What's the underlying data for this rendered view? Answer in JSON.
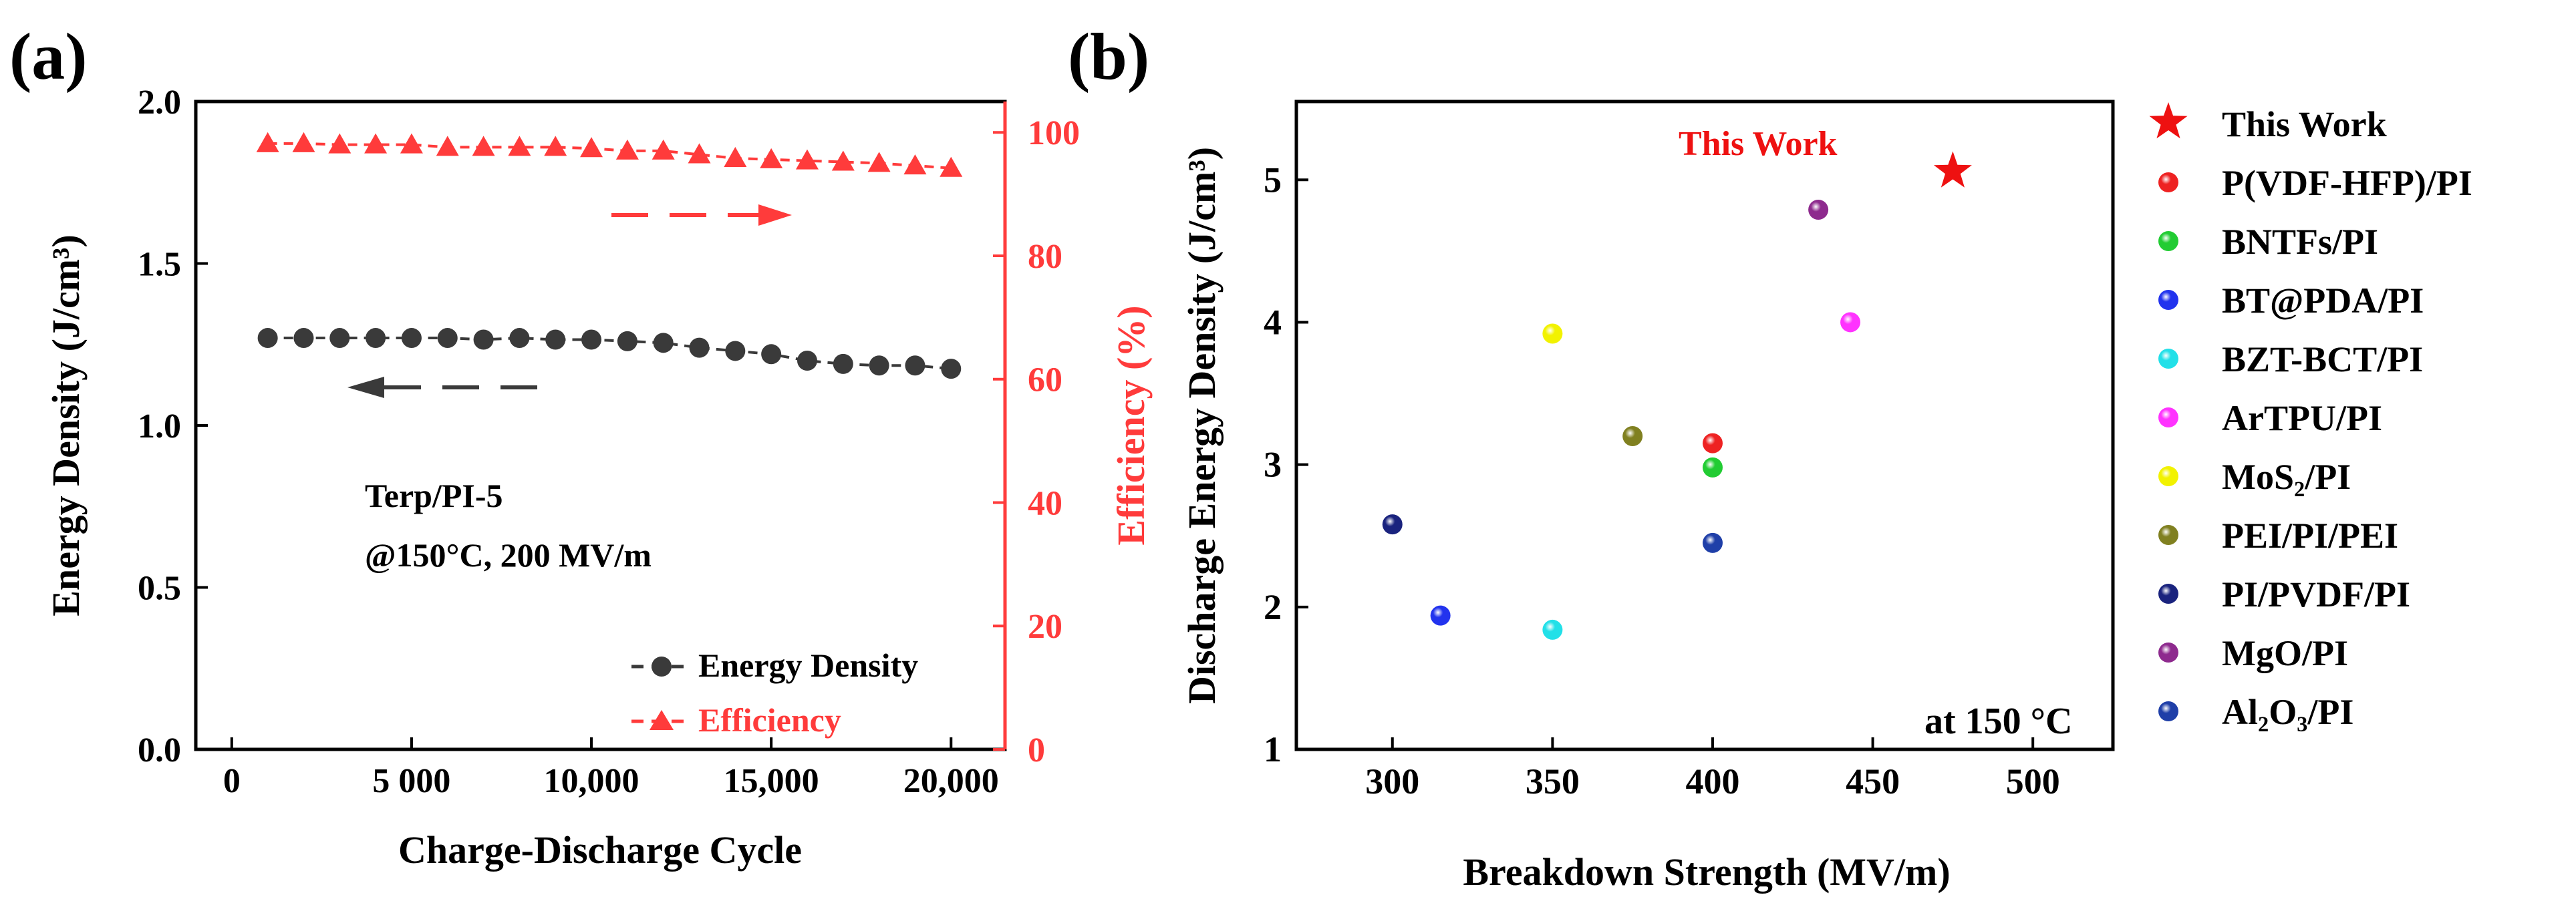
{
  "chart_data": [
    {
      "panel_label": "(a)",
      "type": "line",
      "title": "",
      "xlabel": "Charge-Discharge Cycle",
      "ylabel": "Energy Density (J/cm³)",
      "ylabel_right": "Efficiency (%)",
      "xlim": [
        -1000,
        21500
      ],
      "ylim": [
        0.0,
        2.0
      ],
      "ylim_right": [
        0,
        105
      ],
      "x_ticks": [
        0,
        5000,
        10000,
        15000,
        20000
      ],
      "x_tick_labels": [
        "0",
        "5 000",
        "10,000",
        "15,000",
        "20,000"
      ],
      "y_ticks": [
        0.0,
        0.5,
        1.0,
        1.5,
        2.0
      ],
      "y_tick_labels": [
        "0.0",
        "0.5",
        "1.0",
        "1.5",
        "2.0"
      ],
      "y_right_ticks": [
        0,
        20,
        40,
        60,
        80,
        100
      ],
      "y_right_tick_labels": [
        "0",
        "20",
        "40",
        "60",
        "80",
        "100"
      ],
      "x": [
        1000,
        2000,
        3000,
        4000,
        5000,
        6000,
        7000,
        8000,
        9000,
        10000,
        11000,
        12000,
        13000,
        14000,
        15000,
        16000,
        17000,
        18000,
        19000,
        20000
      ],
      "series": [
        {
          "name": "Energy Density",
          "axis": "left",
          "color": "#3a3a3a",
          "marker": "circle",
          "values": [
            1.27,
            1.27,
            1.27,
            1.27,
            1.27,
            1.27,
            1.265,
            1.27,
            1.265,
            1.265,
            1.26,
            1.255,
            1.24,
            1.23,
            1.22,
            1.2,
            1.19,
            1.185,
            1.185,
            1.175
          ]
        },
        {
          "name": "Efficiency",
          "axis": "right",
          "color": "#ff3b3b",
          "marker": "triangle",
          "values": [
            98.2,
            98.2,
            98.0,
            98.0,
            98.0,
            97.6,
            97.6,
            97.6,
            97.6,
            97.4,
            97.0,
            97.0,
            96.4,
            95.8,
            95.6,
            95.4,
            95.2,
            95.0,
            94.6,
            94.2
          ]
        }
      ],
      "annotations": [
        "Terp/PI-5",
        "@150°C, 200 MV/m"
      ]
    },
    {
      "panel_label": "(b)",
      "type": "scatter",
      "title": "",
      "xlabel": "Breakdown Strength (MV/m)",
      "ylabel": "Discharge Energy Density (J/cm³)",
      "xlim": [
        270,
        525
      ],
      "ylim": [
        1.0,
        5.55
      ],
      "x_ticks": [
        300,
        350,
        400,
        450,
        500
      ],
      "x_tick_labels": [
        "300",
        "350",
        "400",
        "450",
        "500"
      ],
      "y_ticks": [
        1,
        2,
        3,
        4,
        5
      ],
      "y_tick_labels": [
        "1",
        "2",
        "3",
        "4",
        "5"
      ],
      "points": [
        {
          "label": "This Work",
          "x": 475,
          "y": 5.06,
          "color": "#ee1111",
          "marker": "star"
        },
        {
          "label": "P(VDF-HFP)/PI",
          "x": 400,
          "y": 3.15,
          "color": "#ee2222",
          "marker": "circle"
        },
        {
          "label": "BNTFs/PI",
          "x": 400,
          "y": 2.98,
          "color": "#22cc33",
          "marker": "circle"
        },
        {
          "label": "BT@PDA/PI",
          "x": 315,
          "y": 1.94,
          "color": "#2233ee",
          "marker": "circle"
        },
        {
          "label": "BZT-BCT/PI",
          "x": 350,
          "y": 1.84,
          "color": "#22e0e8",
          "marker": "circle"
        },
        {
          "label": "ArTPU/PI",
          "x": 443,
          "y": 4.0,
          "color": "#ff33ff",
          "marker": "circle"
        },
        {
          "label": "MoS₂/PI",
          "x": 350,
          "y": 3.92,
          "color": "#f2f200",
          "marker": "circle"
        },
        {
          "label": "PEI/PI/PEI",
          "x": 375,
          "y": 3.2,
          "color": "#808020",
          "marker": "circle"
        },
        {
          "label": "PI/PVDF/PI",
          "x": 300,
          "y": 2.58,
          "color": "#1a237e",
          "marker": "circle"
        },
        {
          "label": "MgO/PI",
          "x": 433,
          "y": 4.79,
          "color": "#8e2a8e",
          "marker": "circle"
        },
        {
          "label": "Al₂O₃/PI",
          "x": 400,
          "y": 2.45,
          "color": "#1f3fa8",
          "marker": "circle"
        }
      ],
      "legend": [
        "This Work",
        "P(VDF-HFP)/PI",
        "BNTFs/PI",
        "BT@PDA/PI",
        "BZT-BCT/PI",
        "ArTPU/PI",
        "MoS₂/PI",
        "PEI/PI/PEI",
        "PI/PVDF/PI",
        "MgO/PI",
        "Al₂O₃/PI"
      ],
      "legend_position": "outside-right",
      "annotations": [
        "This Work",
        "at 150 °C"
      ]
    }
  ]
}
